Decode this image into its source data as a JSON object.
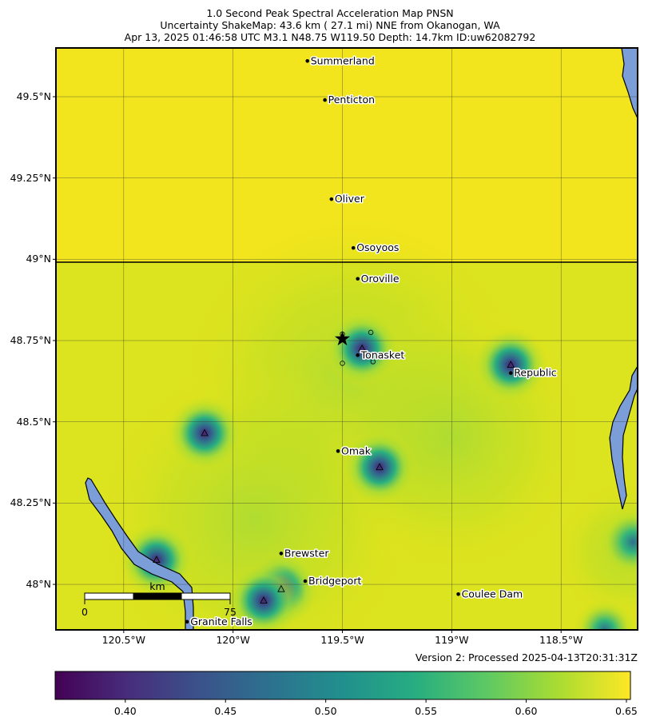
{
  "title_lines": [
    "1.0 Second Peak Spectral Acceleration Map PNSN",
    "Uncertainty ShakeMap: 43.6 km (  27.1 mi) NNE from Okanogan, WA",
    "Apr 13, 2025 01:46:58 UTC M3.1 N48.75 W119.50 Depth: 14.7km ID:uw62082792"
  ],
  "lat_ticks": [
    {
      "label": "49.5°N",
      "value": 49.5
    },
    {
      "label": "49.25°N",
      "value": 49.25
    },
    {
      "label": "49°N",
      "value": 49.0
    },
    {
      "label": "48.75°N",
      "value": 48.75
    },
    {
      "label": "48.5°N",
      "value": 48.5
    },
    {
      "label": "48.25°N",
      "value": 48.25
    },
    {
      "label": "48°N",
      "value": 48.0
    }
  ],
  "lon_ticks": [
    {
      "label": "120.5°W",
      "value": -120.5
    },
    {
      "label": "120°W",
      "value": -120.0
    },
    {
      "label": "119.5°W",
      "value": -119.5
    },
    {
      "label": "119°W",
      "value": -119.0
    },
    {
      "label": "118.5°W",
      "value": -118.5
    }
  ],
  "extent": {
    "lon_min": -120.81,
    "lon_max": -118.15,
    "lat_min": 47.86,
    "lat_max": 49.65
  },
  "epicenter": {
    "lon": -119.5,
    "lat": 48.755
  },
  "cities": [
    {
      "name": "Summerland",
      "lon": -119.66,
      "lat": 49.61
    },
    {
      "name": "Penticton",
      "lon": -119.58,
      "lat": 49.49
    },
    {
      "name": "Oliver",
      "lon": -119.55,
      "lat": 49.185
    },
    {
      "name": "Osoyoos",
      "lon": -119.45,
      "lat": 49.035
    },
    {
      "name": "Oroville",
      "lon": -119.43,
      "lat": 48.94
    },
    {
      "name": "Tonasket",
      "lon": -119.43,
      "lat": 48.705
    },
    {
      "name": "Republic",
      "lon": -118.73,
      "lat": 48.65
    },
    {
      "name": "Omak",
      "lon": -119.52,
      "lat": 48.41
    },
    {
      "name": "Brewster",
      "lon": -119.78,
      "lat": 48.095
    },
    {
      "name": "Bridgeport",
      "lon": -119.67,
      "lat": 48.01
    },
    {
      "name": "Coulee Dam",
      "lon": -118.97,
      "lat": 47.97
    },
    {
      "name": "Granite Falls",
      "lon": -120.21,
      "lat": 47.885
    }
  ],
  "stations": [
    {
      "lon": -119.41,
      "lat": 48.725
    },
    {
      "lon": -118.73,
      "lat": 48.675
    },
    {
      "lon": -120.13,
      "lat": 48.465
    },
    {
      "lon": -119.33,
      "lat": 48.36
    },
    {
      "lon": -120.35,
      "lat": 48.075
    },
    {
      "lon": -119.78,
      "lat": 47.985
    },
    {
      "lon": -119.86,
      "lat": 47.95
    }
  ],
  "small_circles": [
    {
      "lon": -119.5,
      "lat": 48.77
    },
    {
      "lon": -119.37,
      "lat": 48.775
    },
    {
      "lon": -119.5,
      "lat": 48.68
    },
    {
      "lon": -119.36,
      "lat": 48.685
    }
  ],
  "scale_bar": {
    "unit_label": "km",
    "start_label": "0",
    "end_label": "75"
  },
  "version_text": "Version 2: Processed 2025-04-13T20:31:31Z",
  "colorbar": {
    "min": 0.365,
    "max": 0.652,
    "ticks": [
      {
        "label": "0.40",
        "value": 0.4
      },
      {
        "label": "0.45",
        "value": 0.45
      },
      {
        "label": "0.50",
        "value": 0.5
      },
      {
        "label": "0.55",
        "value": 0.55
      },
      {
        "label": "0.60",
        "value": 0.6
      },
      {
        "label": "0.65",
        "value": 0.65
      }
    ]
  },
  "colors": {
    "yellow": "#f0e51e",
    "water": "#7b9ed8",
    "viridis_dark": "#440154",
    "viridis_blue": "#3b528b",
    "viridis_teal": "#21908d",
    "viridis_green": "#5dc963",
    "viridis_yellow": "#fde725"
  }
}
